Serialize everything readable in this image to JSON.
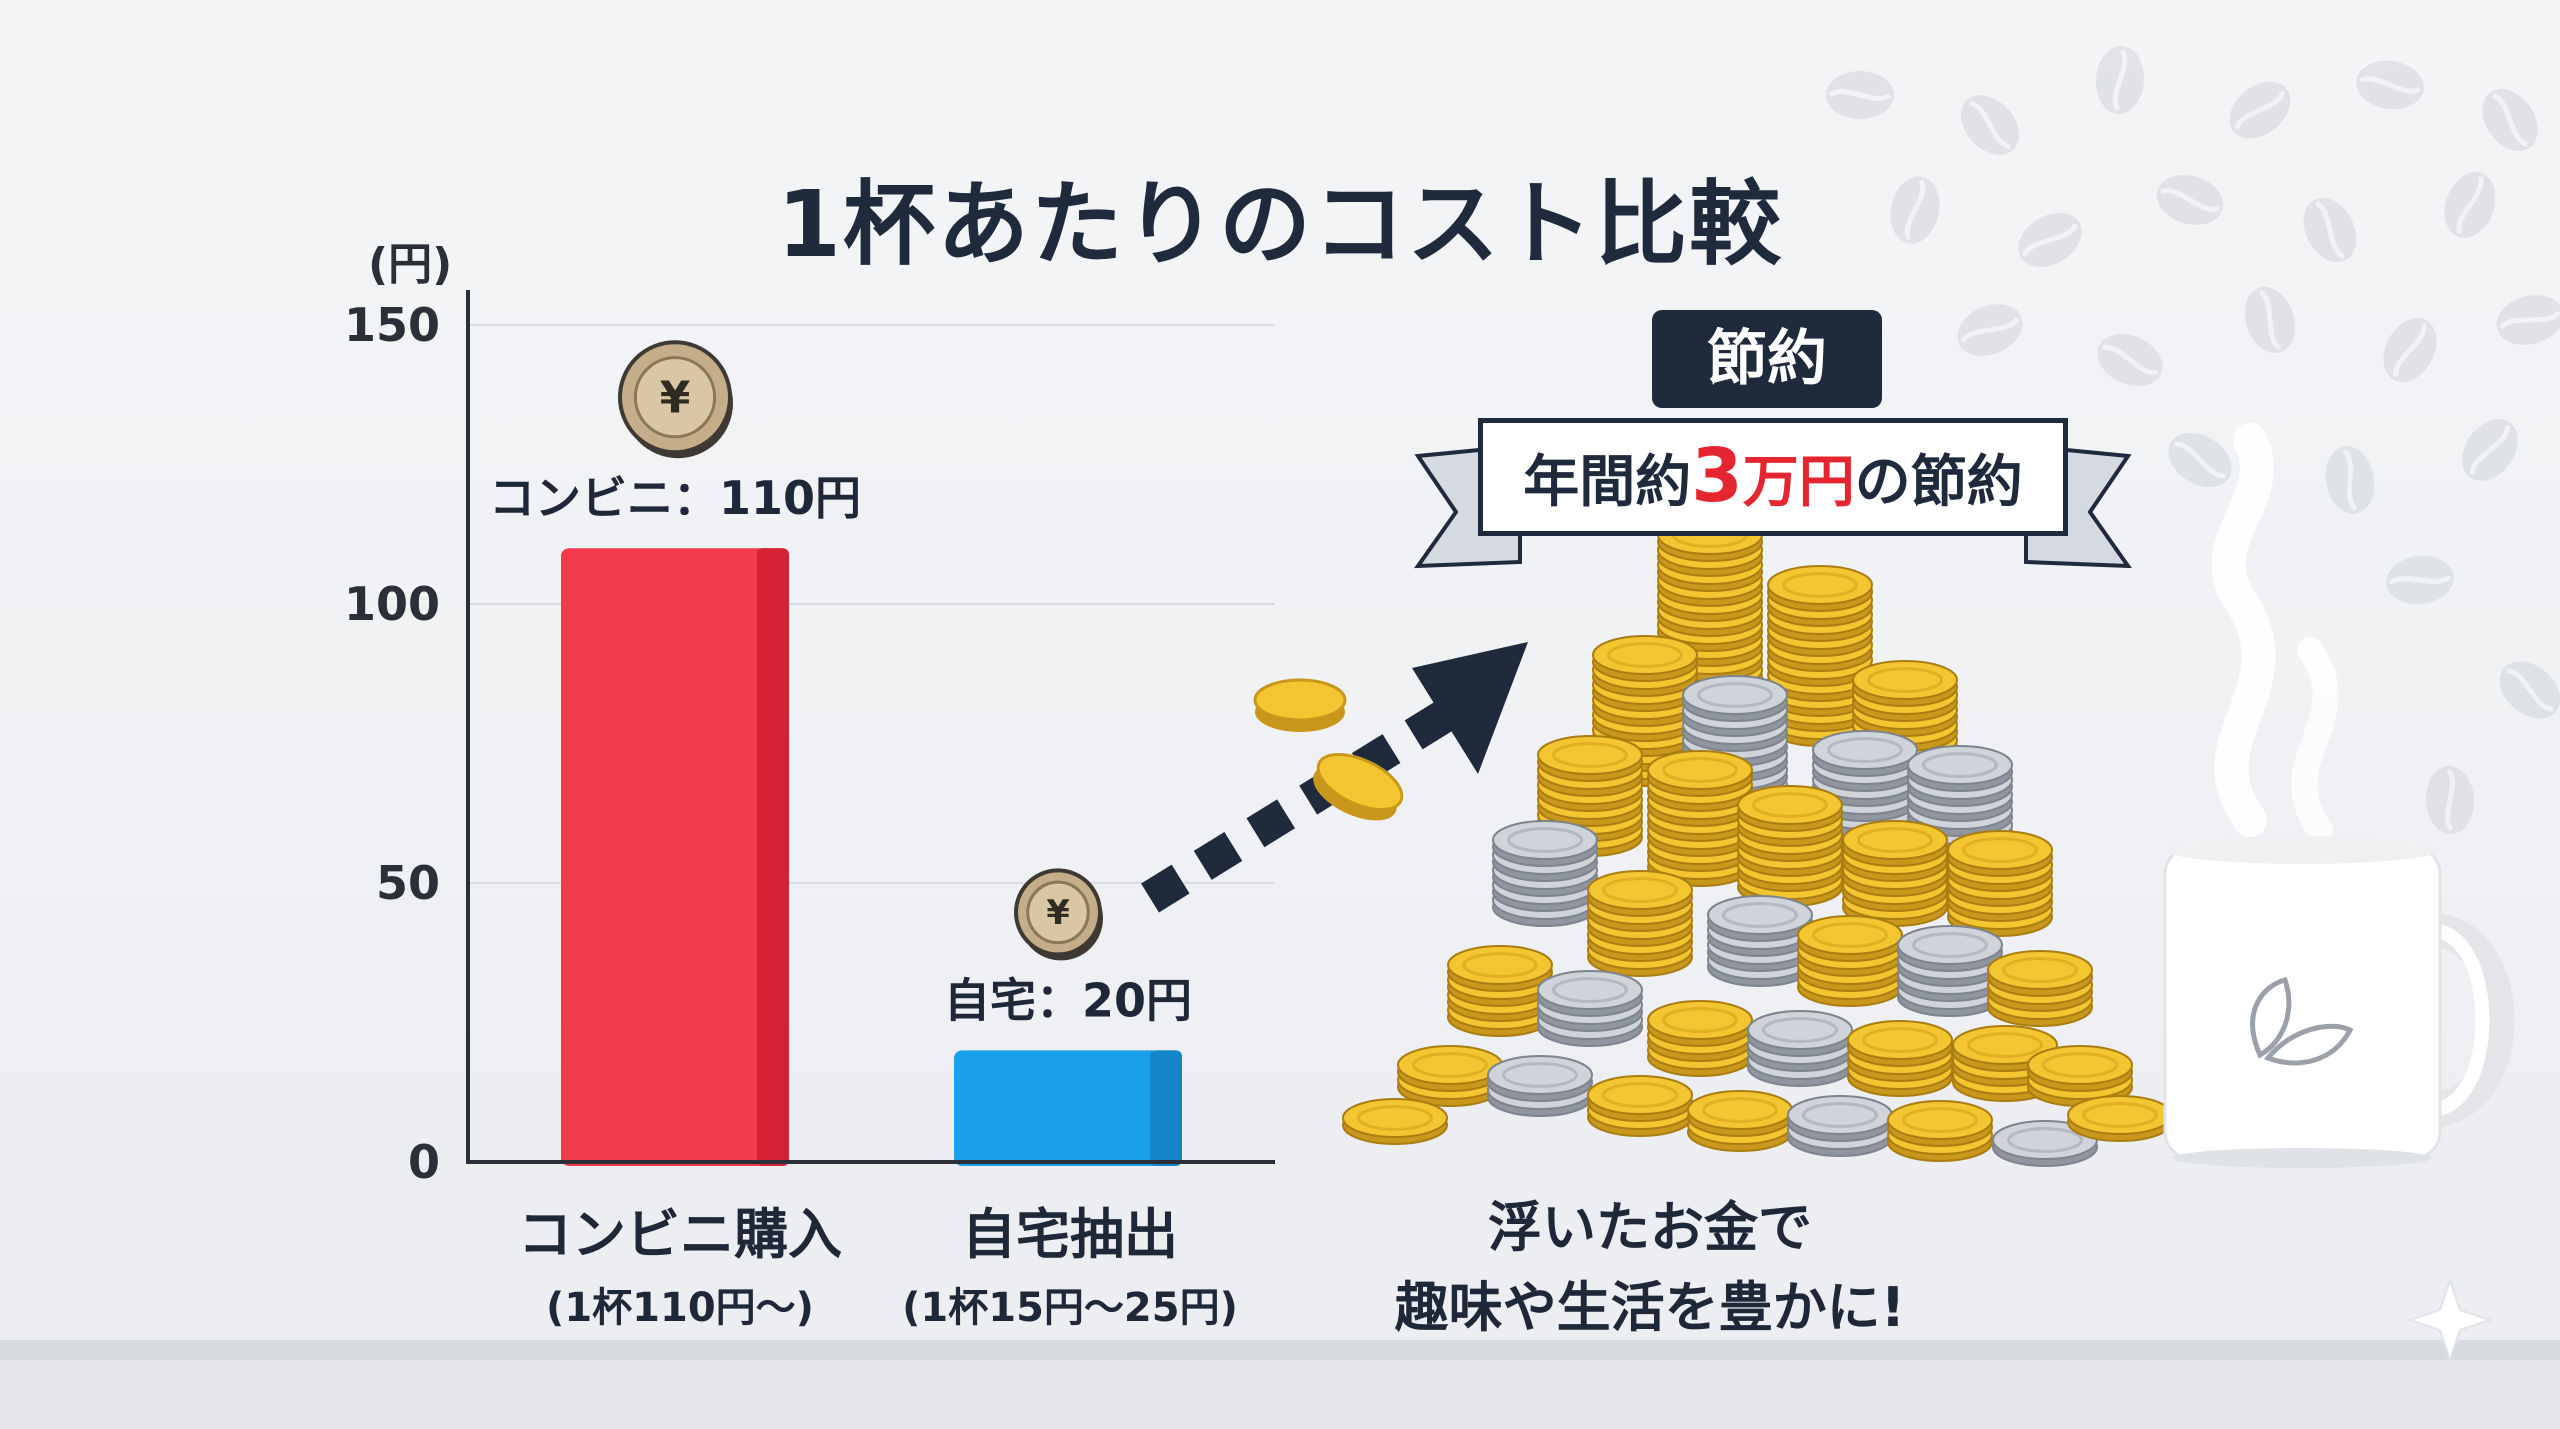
{
  "title": "1杯あたりのコスト比較",
  "colors": {
    "convenience_bar": "#f23a4a",
    "home_bar": "#1ba0ea",
    "navy": "#1f2a3d",
    "highlight": "#e5252f",
    "gold": "#f3c531",
    "silver": "#c6cbd2"
  },
  "chart_data": {
    "type": "bar",
    "title": "1杯あたりのコスト比較",
    "unit_label": "(円)",
    "ylim": [
      0,
      150
    ],
    "yticks": [
      "0",
      "50",
      "100",
      "150"
    ],
    "grid": true,
    "categories": [
      "コンビニ購入",
      "自宅抽出"
    ],
    "category_notes": [
      "(1杯110円〜)",
      "(1杯15円〜25円)"
    ],
    "values": [
      110,
      20
    ],
    "data_labels": [
      "コンビニ：110円",
      "自宅：20円"
    ]
  },
  "badge": "節約",
  "banner": {
    "pre": "年間約",
    "num": "3",
    "unit": "万円",
    "post": "の節約"
  },
  "caption": {
    "line1": "浮いたお金で",
    "line2": "趣味や生活を豊かに!"
  },
  "icons": [
    "yen-coin-icon",
    "coin-stack-icon",
    "arrow-icon",
    "mug-icon",
    "leaf-icon",
    "coffee-bean-icon",
    "sparkle-icon"
  ]
}
